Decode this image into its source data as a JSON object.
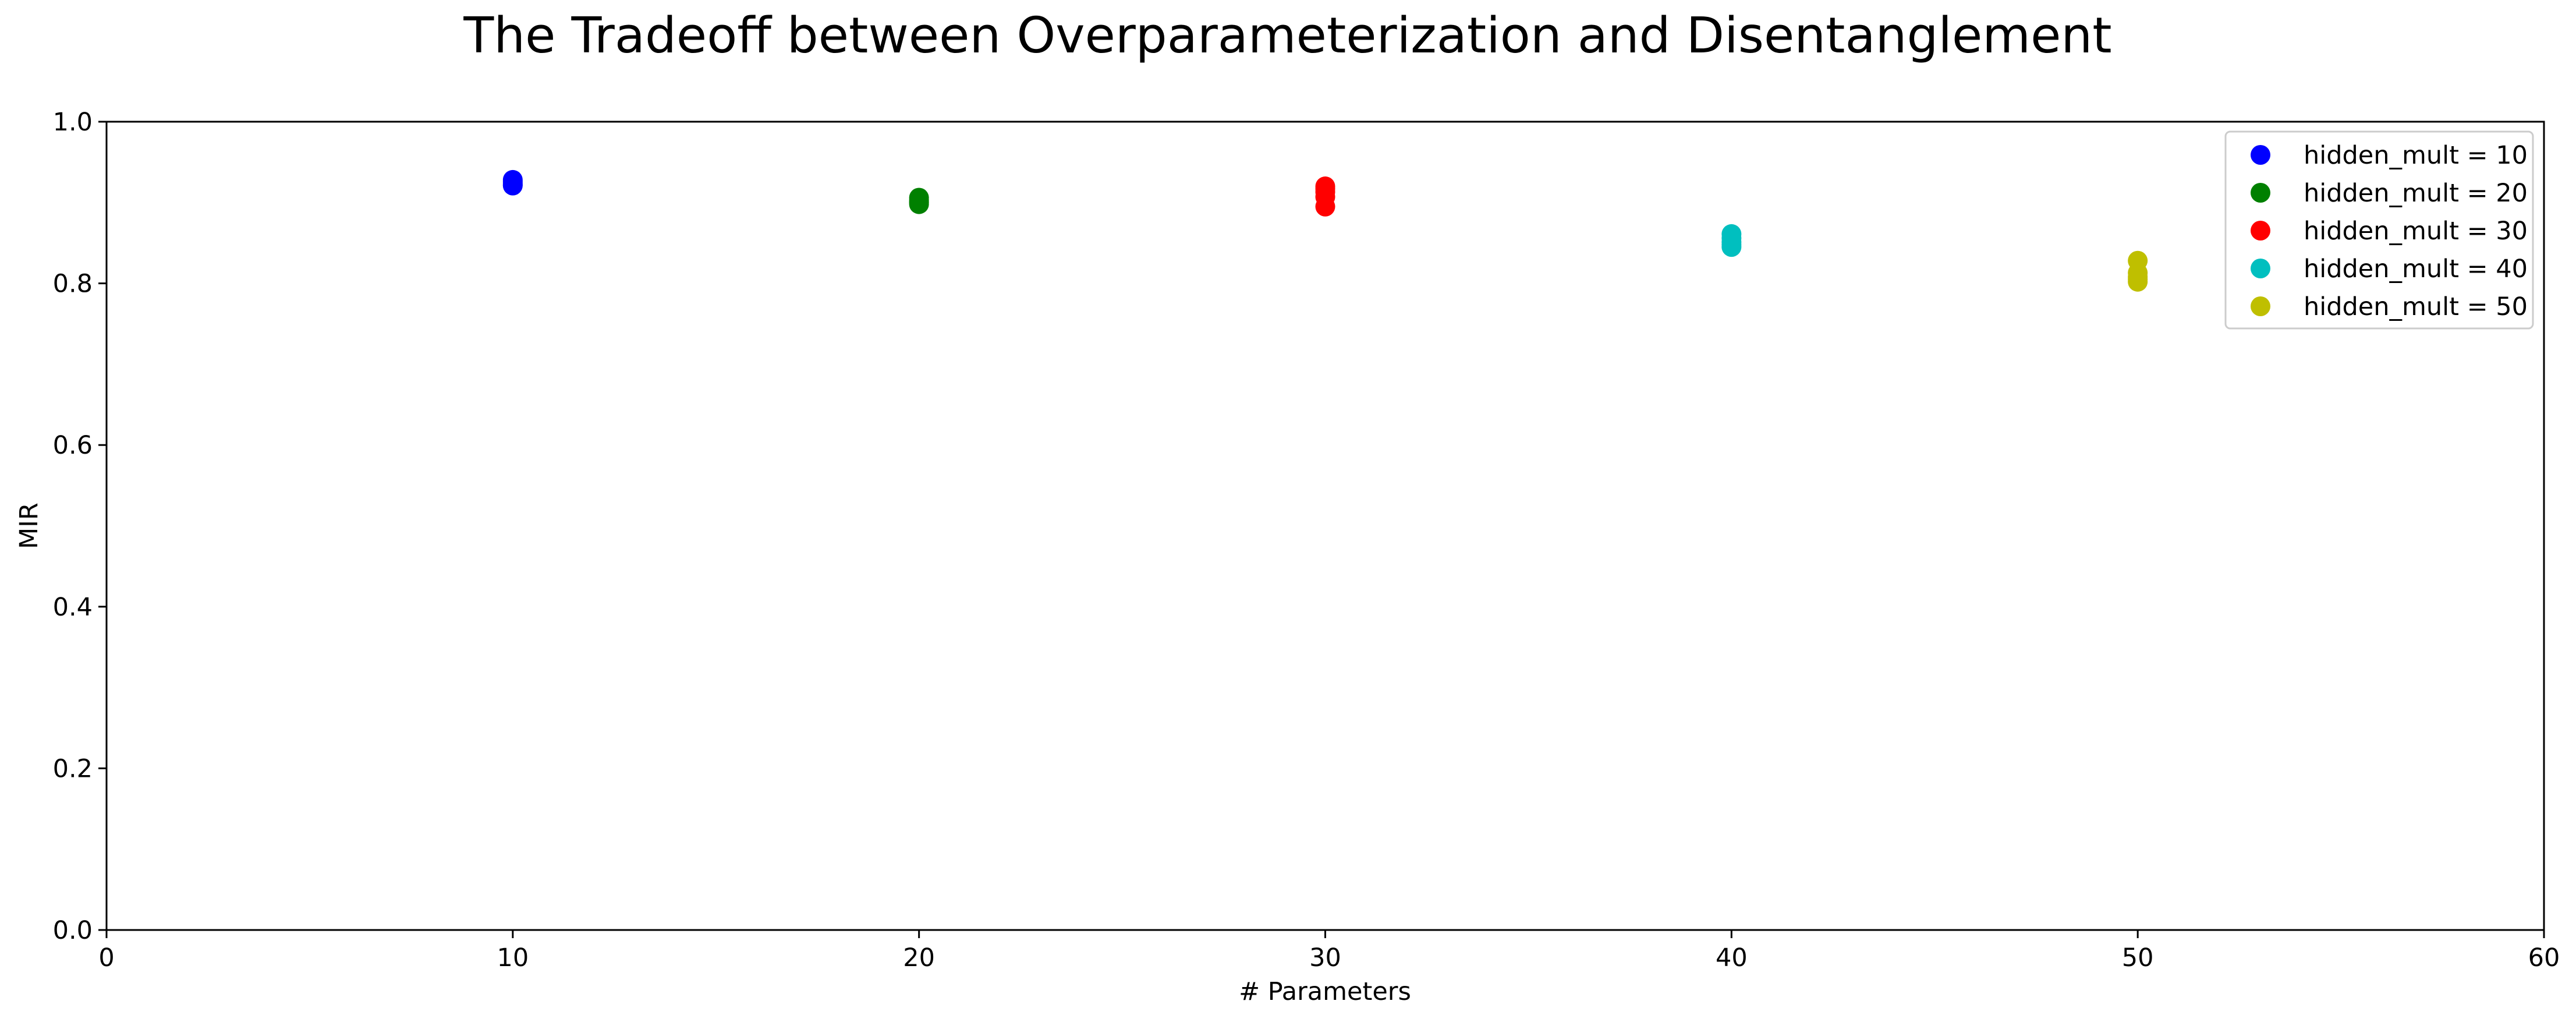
{
  "chart_data": {
    "type": "scatter",
    "title": "The Tradeoff between Overparameterization and Disentanglement",
    "xlabel": "# Parameters",
    "ylabel": "MIR",
    "xlim": [
      0,
      60
    ],
    "ylim": [
      0,
      1.0
    ],
    "xticks": [
      0,
      10,
      20,
      30,
      40,
      50,
      60
    ],
    "xtick_labels": [
      "0",
      "10",
      "20",
      "30",
      "40",
      "50",
      "60"
    ],
    "yticks": [
      0,
      0.2,
      0.4,
      0.6,
      0.8,
      1.0
    ],
    "ytick_labels": [
      "0.0",
      "0.2",
      "0.4",
      "0.6",
      "0.8",
      "1.0"
    ],
    "grid": false,
    "legend_position": "top-right",
    "series": [
      {
        "name": "hidden_mult = 10",
        "color": "#0000ff",
        "x": [
          10,
          10,
          10,
          10,
          10
        ],
        "y": [
          0.921,
          0.924,
          0.926,
          0.928,
          0.922
        ]
      },
      {
        "name": "hidden_mult = 20",
        "color": "#008000",
        "x": [
          20,
          20,
          20,
          20,
          20
        ],
        "y": [
          0.898,
          0.901,
          0.903,
          0.906,
          0.9
        ]
      },
      {
        "name": "hidden_mult = 30",
        "color": "#ff0000",
        "x": [
          30,
          30,
          30,
          30,
          30
        ],
        "y": [
          0.895,
          0.907,
          0.913,
          0.92,
          0.917
        ]
      },
      {
        "name": "hidden_mult = 40",
        "color": "#00bfbf",
        "x": [
          40,
          40,
          40,
          40,
          40
        ],
        "y": [
          0.845,
          0.851,
          0.856,
          0.861,
          0.848
        ]
      },
      {
        "name": "hidden_mult = 50",
        "color": "#bfbf00",
        "x": [
          50,
          50,
          50,
          50,
          50
        ],
        "y": [
          0.802,
          0.808,
          0.813,
          0.828,
          0.805
        ]
      }
    ]
  }
}
